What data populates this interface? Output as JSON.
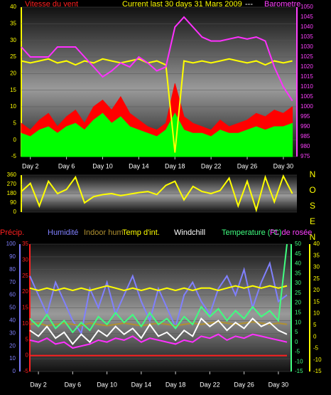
{
  "chart_data": [
    {
      "type": "line",
      "labels": [
        {
          "text": "Vitesse du vent",
          "color": "#ff2020"
        },
        {
          "text": "Current last 30 days 31 Mars 2009",
          "color": "#ffff00"
        },
        {
          "text": "---",
          "color": "#ffffff"
        },
        {
          "text": "Barometre",
          "color": "#ff40ff"
        }
      ],
      "x": [
        1,
        2,
        3,
        4,
        5,
        6,
        7,
        8,
        9,
        10,
        11,
        12,
        13,
        14,
        15,
        16,
        17,
        18,
        19,
        20,
        21,
        22,
        23,
        24,
        25,
        26,
        27,
        28,
        29,
        30,
        31
      ],
      "xlim": [
        1,
        31.5
      ],
      "xticks": [
        {
          "value": 2,
          "label": "Day 2"
        },
        {
          "value": 6,
          "label": "Day 6"
        },
        {
          "value": 10,
          "label": "Day 10"
        },
        {
          "value": 14,
          "label": "Day 14"
        },
        {
          "value": 18,
          "label": "Day 18"
        },
        {
          "value": 22,
          "label": "Day 22"
        },
        {
          "value": 26,
          "label": "Day 26"
        },
        {
          "value": 30,
          "label": "Day 30"
        }
      ],
      "axes": [
        {
          "lim": [
            -5,
            40
          ],
          "ticks": [
            -5,
            0,
            5,
            10,
            15,
            20,
            25,
            30,
            35,
            40
          ],
          "color": "#ffff00"
        },
        {
          "lim": [
            975,
            1050
          ],
          "ticks": [
            975,
            980,
            985,
            990,
            995,
            1000,
            1005,
            1010,
            1015,
            1020,
            1025,
            1030,
            1035,
            1040,
            1045,
            1050
          ],
          "color": "#ff40ff"
        }
      ],
      "series": [
        {
          "color": "#ff0000",
          "axis": 0,
          "kind": "area",
          "values": [
            5,
            3,
            6,
            8,
            4,
            7,
            9,
            5,
            10,
            12,
            9,
            13,
            8,
            6,
            4,
            3,
            5,
            17,
            7,
            5,
            4,
            3,
            6,
            4,
            5,
            6,
            8,
            7,
            9,
            8,
            10
          ]
        },
        {
          "color": "#00ff00",
          "axis": 0,
          "kind": "area",
          "values": [
            2,
            1,
            3,
            4,
            2,
            4,
            5,
            3,
            6,
            8,
            5,
            7,
            4,
            3,
            2,
            1,
            3,
            8,
            3,
            2,
            2,
            1,
            3,
            2,
            2,
            3,
            4,
            3,
            4,
            4,
            5
          ]
        },
        {
          "color": "#ffff00",
          "axis": 1,
          "kind": "line",
          "values": [
            1023,
            1022,
            1023,
            1024,
            1022,
            1023,
            1021,
            1023,
            1022,
            1024,
            1023,
            1022,
            1023,
            1024,
            1022,
            1023,
            1021,
            977,
            1023,
            1022,
            1023,
            1022,
            1023,
            1024,
            1023,
            1022,
            1023,
            1021,
            1023,
            1022,
            1023
          ]
        },
        {
          "name": "Barometre",
          "color": "#ff30ff",
          "axis": 1,
          "kind": "line",
          "values": [
            1030,
            1025,
            1025,
            1025,
            1030,
            1030,
            1030,
            1025,
            1020,
            1015,
            1018,
            1022,
            1020,
            1025,
            1022,
            1018,
            1020,
            1040,
            1045,
            1040,
            1035,
            1033,
            1033,
            1034,
            1035,
            1034,
            1035,
            1033,
            1020,
            1010,
            1003
          ]
        }
      ]
    },
    {
      "type": "line",
      "labels": [
        {
          "text": "N",
          "color": "#ffff00"
        },
        {
          "text": "O",
          "color": "#ffff00"
        },
        {
          "text": "S",
          "color": "#ffff00"
        },
        {
          "text": "E",
          "color": "#ffff00"
        },
        {
          "text": "N",
          "color": "#ffff00"
        }
      ],
      "x": [
        1,
        2,
        3,
        4,
        5,
        6,
        7,
        8,
        9,
        10,
        11,
        12,
        13,
        14,
        15,
        16,
        17,
        18,
        19,
        20,
        21,
        22,
        23,
        24,
        25,
        26,
        27,
        28,
        29,
        30,
        31
      ],
      "xlim": [
        1,
        31.5
      ],
      "axes": [
        {
          "lim": [
            0,
            360
          ],
          "ticks": [
            0,
            90,
            180,
            270,
            360
          ],
          "color": "#ffff00"
        }
      ],
      "series": [
        {
          "color": "#ffff00",
          "axis": 0,
          "kind": "line",
          "values": [
            200,
            280,
            60,
            300,
            180,
            220,
            340,
            90,
            150,
            170,
            180,
            160,
            175,
            190,
            200,
            170,
            260,
            300,
            120,
            250,
            200,
            180,
            210,
            330,
            60,
            300,
            20,
            340,
            100,
            350,
            180
          ]
        }
      ]
    },
    {
      "type": "line",
      "labels": [
        {
          "text": "Précip.",
          "color": "#ff2020"
        },
        {
          "text": "Humidité",
          "color": "#8080ff"
        },
        {
          "text": "Indoor hum",
          "color": "#b09030"
        },
        {
          "text": "Temp d'int.",
          "color": "#ffff00"
        },
        {
          "text": "Windchill",
          "color": "#ffffff"
        },
        {
          "text": "Temperature (°C)",
          "color": "#40ff80"
        },
        {
          "text": "Pt. de rosée",
          "color": "#ff40ff"
        }
      ],
      "x": [
        1,
        2,
        3,
        4,
        5,
        6,
        7,
        8,
        9,
        10,
        11,
        12,
        13,
        14,
        15,
        16,
        17,
        18,
        19,
        20,
        21,
        22,
        23,
        24,
        25,
        26,
        27,
        28,
        29,
        30,
        31
      ],
      "xlim": [
        1,
        31.5
      ],
      "xticks": [
        {
          "value": 2,
          "label": "Day 2"
        },
        {
          "value": 6,
          "label": "Day 6"
        },
        {
          "value": 10,
          "label": "Day 10"
        },
        {
          "value": 14,
          "label": "Day 14"
        },
        {
          "value": 18,
          "label": "Day 18"
        },
        {
          "value": 22,
          "label": "Day 22"
        },
        {
          "value": 26,
          "label": "Day 26"
        },
        {
          "value": 30,
          "label": "Day 30"
        }
      ],
      "axes": [
        {
          "lim": [
            0,
            100
          ],
          "ticks": [
            0,
            10,
            20,
            30,
            40,
            50,
            60,
            70,
            80,
            90,
            100
          ],
          "color": "#8080ff"
        },
        {
          "lim": [
            -5,
            35
          ],
          "ticks": [
            -5,
            0,
            5,
            10,
            15,
            20,
            25,
            30,
            35
          ],
          "color": "#ff2020"
        },
        {
          "lim": [
            -15,
            50
          ],
          "ticks": [
            -15,
            -10,
            -5,
            0,
            5,
            10,
            15,
            20,
            25,
            30,
            35,
            40,
            45,
            50
          ],
          "color": "#40ff80"
        },
        {
          "lim": [
            -15,
            40
          ],
          "ticks": [
            -15,
            -10,
            -5,
            0,
            5,
            10,
            15,
            20,
            25,
            30,
            35,
            40
          ],
          "color": "#ffff00"
        }
      ],
      "series": [
        {
          "name": "Précip.",
          "color": "#ff2020",
          "axis": 1,
          "kind": "line",
          "values": [
            0,
            0,
            0,
            0,
            0,
            0,
            0,
            0,
            0,
            0,
            0,
            0,
            0,
            0,
            0,
            0,
            0,
            0,
            0,
            0,
            0,
            0,
            0,
            0,
            0,
            0,
            0,
            0,
            0,
            0,
            0
          ]
        },
        {
          "name": "Humidité",
          "color": "#8080ff",
          "axis": 0,
          "kind": "line",
          "values": [
            75,
            60,
            45,
            70,
            55,
            40,
            30,
            65,
            50,
            70,
            45,
            60,
            75,
            55,
            40,
            65,
            50,
            35,
            60,
            70,
            55,
            45,
            65,
            75,
            60,
            80,
            50,
            70,
            85,
            55,
            60
          ]
        },
        {
          "name": "Indoor hum",
          "color": "#b09030",
          "axis": 0,
          "kind": "line",
          "values": [
            37,
            38,
            36,
            37,
            38,
            37,
            36,
            38,
            37,
            36,
            37,
            38,
            37,
            36,
            37,
            38,
            37,
            36,
            37,
            38,
            37,
            38,
            39,
            38,
            37,
            38,
            39,
            38,
            37,
            38,
            37
          ]
        },
        {
          "name": "Temp d'int.",
          "color": "#ffff00",
          "axis": 3,
          "kind": "line",
          "values": [
            21,
            20,
            21,
            20,
            21,
            20,
            21,
            20,
            21,
            22,
            21,
            20,
            21,
            20,
            21,
            20,
            21,
            20,
            21,
            20,
            21,
            21,
            20,
            21,
            22,
            21,
            22,
            21,
            22,
            21,
            22
          ]
        },
        {
          "name": "Windchill",
          "color": "#ffffff",
          "axis": 2,
          "kind": "line",
          "values": [
            6,
            3,
            8,
            2,
            5,
            -1,
            4,
            0,
            6,
            3,
            8,
            4,
            7,
            2,
            9,
            3,
            5,
            1,
            6,
            3,
            12,
            8,
            11,
            6,
            10,
            7,
            12,
            8,
            10,
            6,
            4
          ]
        },
        {
          "name": "Temperature (°C)",
          "color": "#40ff80",
          "axis": 2,
          "kind": "line",
          "values": [
            12,
            8,
            14,
            7,
            11,
            5,
            10,
            6,
            13,
            9,
            15,
            10,
            14,
            8,
            15,
            9,
            12,
            7,
            13,
            9,
            18,
            13,
            17,
            11,
            16,
            12,
            18,
            13,
            16,
            11,
            50
          ]
        },
        {
          "name": "Pt. de rosée",
          "color": "#ff30ff",
          "axis": 2,
          "kind": "line",
          "values": [
            1,
            0,
            2,
            -1,
            0,
            -3,
            -2,
            -1,
            1,
            0,
            2,
            1,
            3,
            0,
            2,
            1,
            0,
            -1,
            1,
            0,
            3,
            2,
            4,
            1,
            3,
            2,
            4,
            3,
            2,
            1,
            0
          ]
        }
      ]
    }
  ]
}
